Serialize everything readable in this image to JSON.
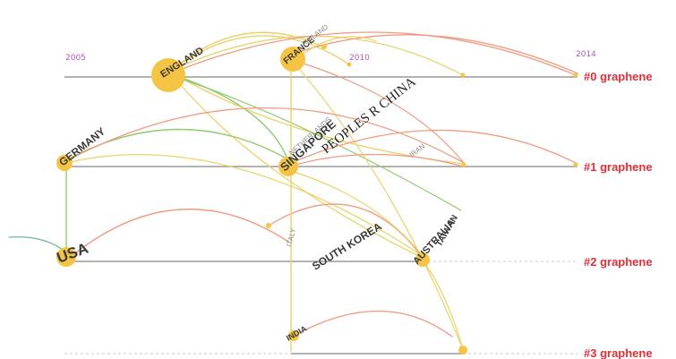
{
  "years": [
    {
      "id": "y2005",
      "label": "2005"
    },
    {
      "id": "y2010",
      "label": "2010"
    },
    {
      "id": "y2014",
      "label": "2014"
    }
  ],
  "clusters": [
    {
      "id": "c0",
      "label": "#0 graphene"
    },
    {
      "id": "c1",
      "label": "#1 graphene"
    },
    {
      "id": "c2",
      "label": "#2 graphene"
    },
    {
      "id": "c3",
      "label": "#3 graphene"
    }
  ],
  "countries": [
    {
      "id": "england",
      "label": "ENGLAND"
    },
    {
      "id": "germany",
      "label": "GERMANY"
    },
    {
      "id": "usa",
      "label": "USA"
    },
    {
      "id": "france",
      "label": "FRANCE"
    },
    {
      "id": "finland",
      "label": "FINLAND"
    },
    {
      "id": "singapore",
      "label": "SINGAPORE"
    },
    {
      "id": "netherlands",
      "label": "NETHERLANDS"
    },
    {
      "id": "peoples-r-china",
      "label": "PEOPLES R CHINA"
    },
    {
      "id": "iran",
      "label": "IRAN"
    },
    {
      "id": "italy",
      "label": "ITALY"
    },
    {
      "id": "south-korea",
      "label": "SOUTH KOREA"
    },
    {
      "id": "australia",
      "label": "AUSTRALIA"
    },
    {
      "id": "taiwan",
      "label": "TAIWAN"
    },
    {
      "id": "india",
      "label": "INDIA"
    }
  ],
  "colors": {
    "timeline": "#9a9a9a",
    "node": "#f6c444",
    "cluster_label": "#e0303a",
    "year_label": "#b05ac0",
    "link_early": "#8fc96a",
    "link_mid": "#e8d36a",
    "link_late": "#f09a80"
  }
}
